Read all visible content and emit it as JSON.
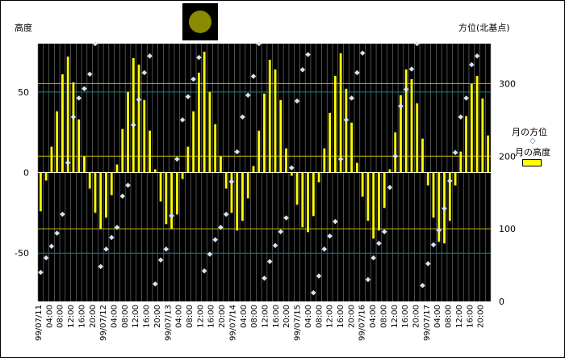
{
  "chart_data": {
    "type": "bar",
    "ylabel_left": "高度",
    "ylabel_right": "方位(北基点)",
    "left_ylim": [
      -80,
      80
    ],
    "left_ticks": [
      "50",
      "0",
      "-50"
    ],
    "right_ylim": [
      0,
      355
    ],
    "right_ticks": [
      "300",
      "200",
      "100",
      "0"
    ],
    "grid": true,
    "legend_position": "right",
    "colors": {
      "plot_background": "#000000",
      "bar": "#ffff00",
      "point": "#cce6ff",
      "gridline_vertical": "#808080",
      "ref_line_yellow": "#c8b400",
      "ref_line_teal": "#008c8c",
      "moon_box": "#000000",
      "moon_disc": "#8a8a00"
    },
    "x_tick_labels": [
      "99/07/11",
      "04:00",
      "08:00",
      "12:00",
      "16:00",
      "20:00",
      "99/07/12",
      "04:00",
      "08:00",
      "12:00",
      "16:00",
      "20:00",
      "99/07/13",
      "04:00",
      "08:00",
      "12:00",
      "16:00",
      "20:00",
      "99/07/14",
      "04:00",
      "08:00",
      "12:00",
      "16:00",
      "20:00",
      "99/07/15",
      "04:00",
      "08:00",
      "12:00",
      "16:00",
      "20:00",
      "99/07/16",
      "04:00",
      "08:00",
      "12:00",
      "16:00",
      "20:00",
      "99/07/17",
      "04:00",
      "08:00",
      "12:00",
      "16:00",
      "20:00"
    ],
    "hours_per_step": 2,
    "series": [
      {
        "name": "月の高度",
        "kind": "bar",
        "values": [
          -24,
          -5,
          16,
          38,
          61,
          72,
          56,
          33,
          10,
          -10,
          -25,
          -35,
          -28,
          -14,
          5,
          27,
          50,
          71,
          67,
          45,
          26,
          2,
          -18,
          -32,
          -35,
          -26,
          -4,
          16,
          38,
          62,
          75,
          50,
          30,
          10,
          -10,
          -25,
          -36,
          -30,
          -16,
          4,
          26,
          49,
          70,
          64,
          45,
          15,
          -2,
          -20,
          -34,
          -37,
          -27,
          -6,
          15,
          37,
          60,
          74,
          52,
          31,
          6,
          -15,
          -30,
          -41,
          -36,
          -22,
          2,
          25,
          48,
          64,
          58,
          43,
          21,
          -8,
          -28,
          -43,
          -44,
          -30,
          -8,
          13,
          35,
          55,
          60,
          46,
          23
        ]
      },
      {
        "name": "月の方位",
        "kind": "point",
        "values": [
          40,
          60,
          76,
          94,
          120,
          191,
          254,
          280,
          293,
          313,
          355,
          48,
          72,
          88,
          102,
          145,
          160,
          243,
          278,
          315,
          338,
          24,
          57,
          72,
          118,
          196,
          250,
          282,
          306,
          336,
          42,
          65,
          85,
          102,
          120,
          165,
          206,
          254,
          284,
          310,
          355,
          32,
          55,
          77,
          96,
          115,
          184,
          276,
          319,
          340,
          12,
          35,
          72,
          90,
          110,
          196,
          250,
          280,
          315,
          342,
          30,
          60,
          80,
          96,
          157,
          200,
          269,
          292,
          320,
          355,
          22,
          52,
          78,
          98,
          128,
          166,
          205,
          254,
          280,
          326,
          338
        ]
      }
    ]
  }
}
